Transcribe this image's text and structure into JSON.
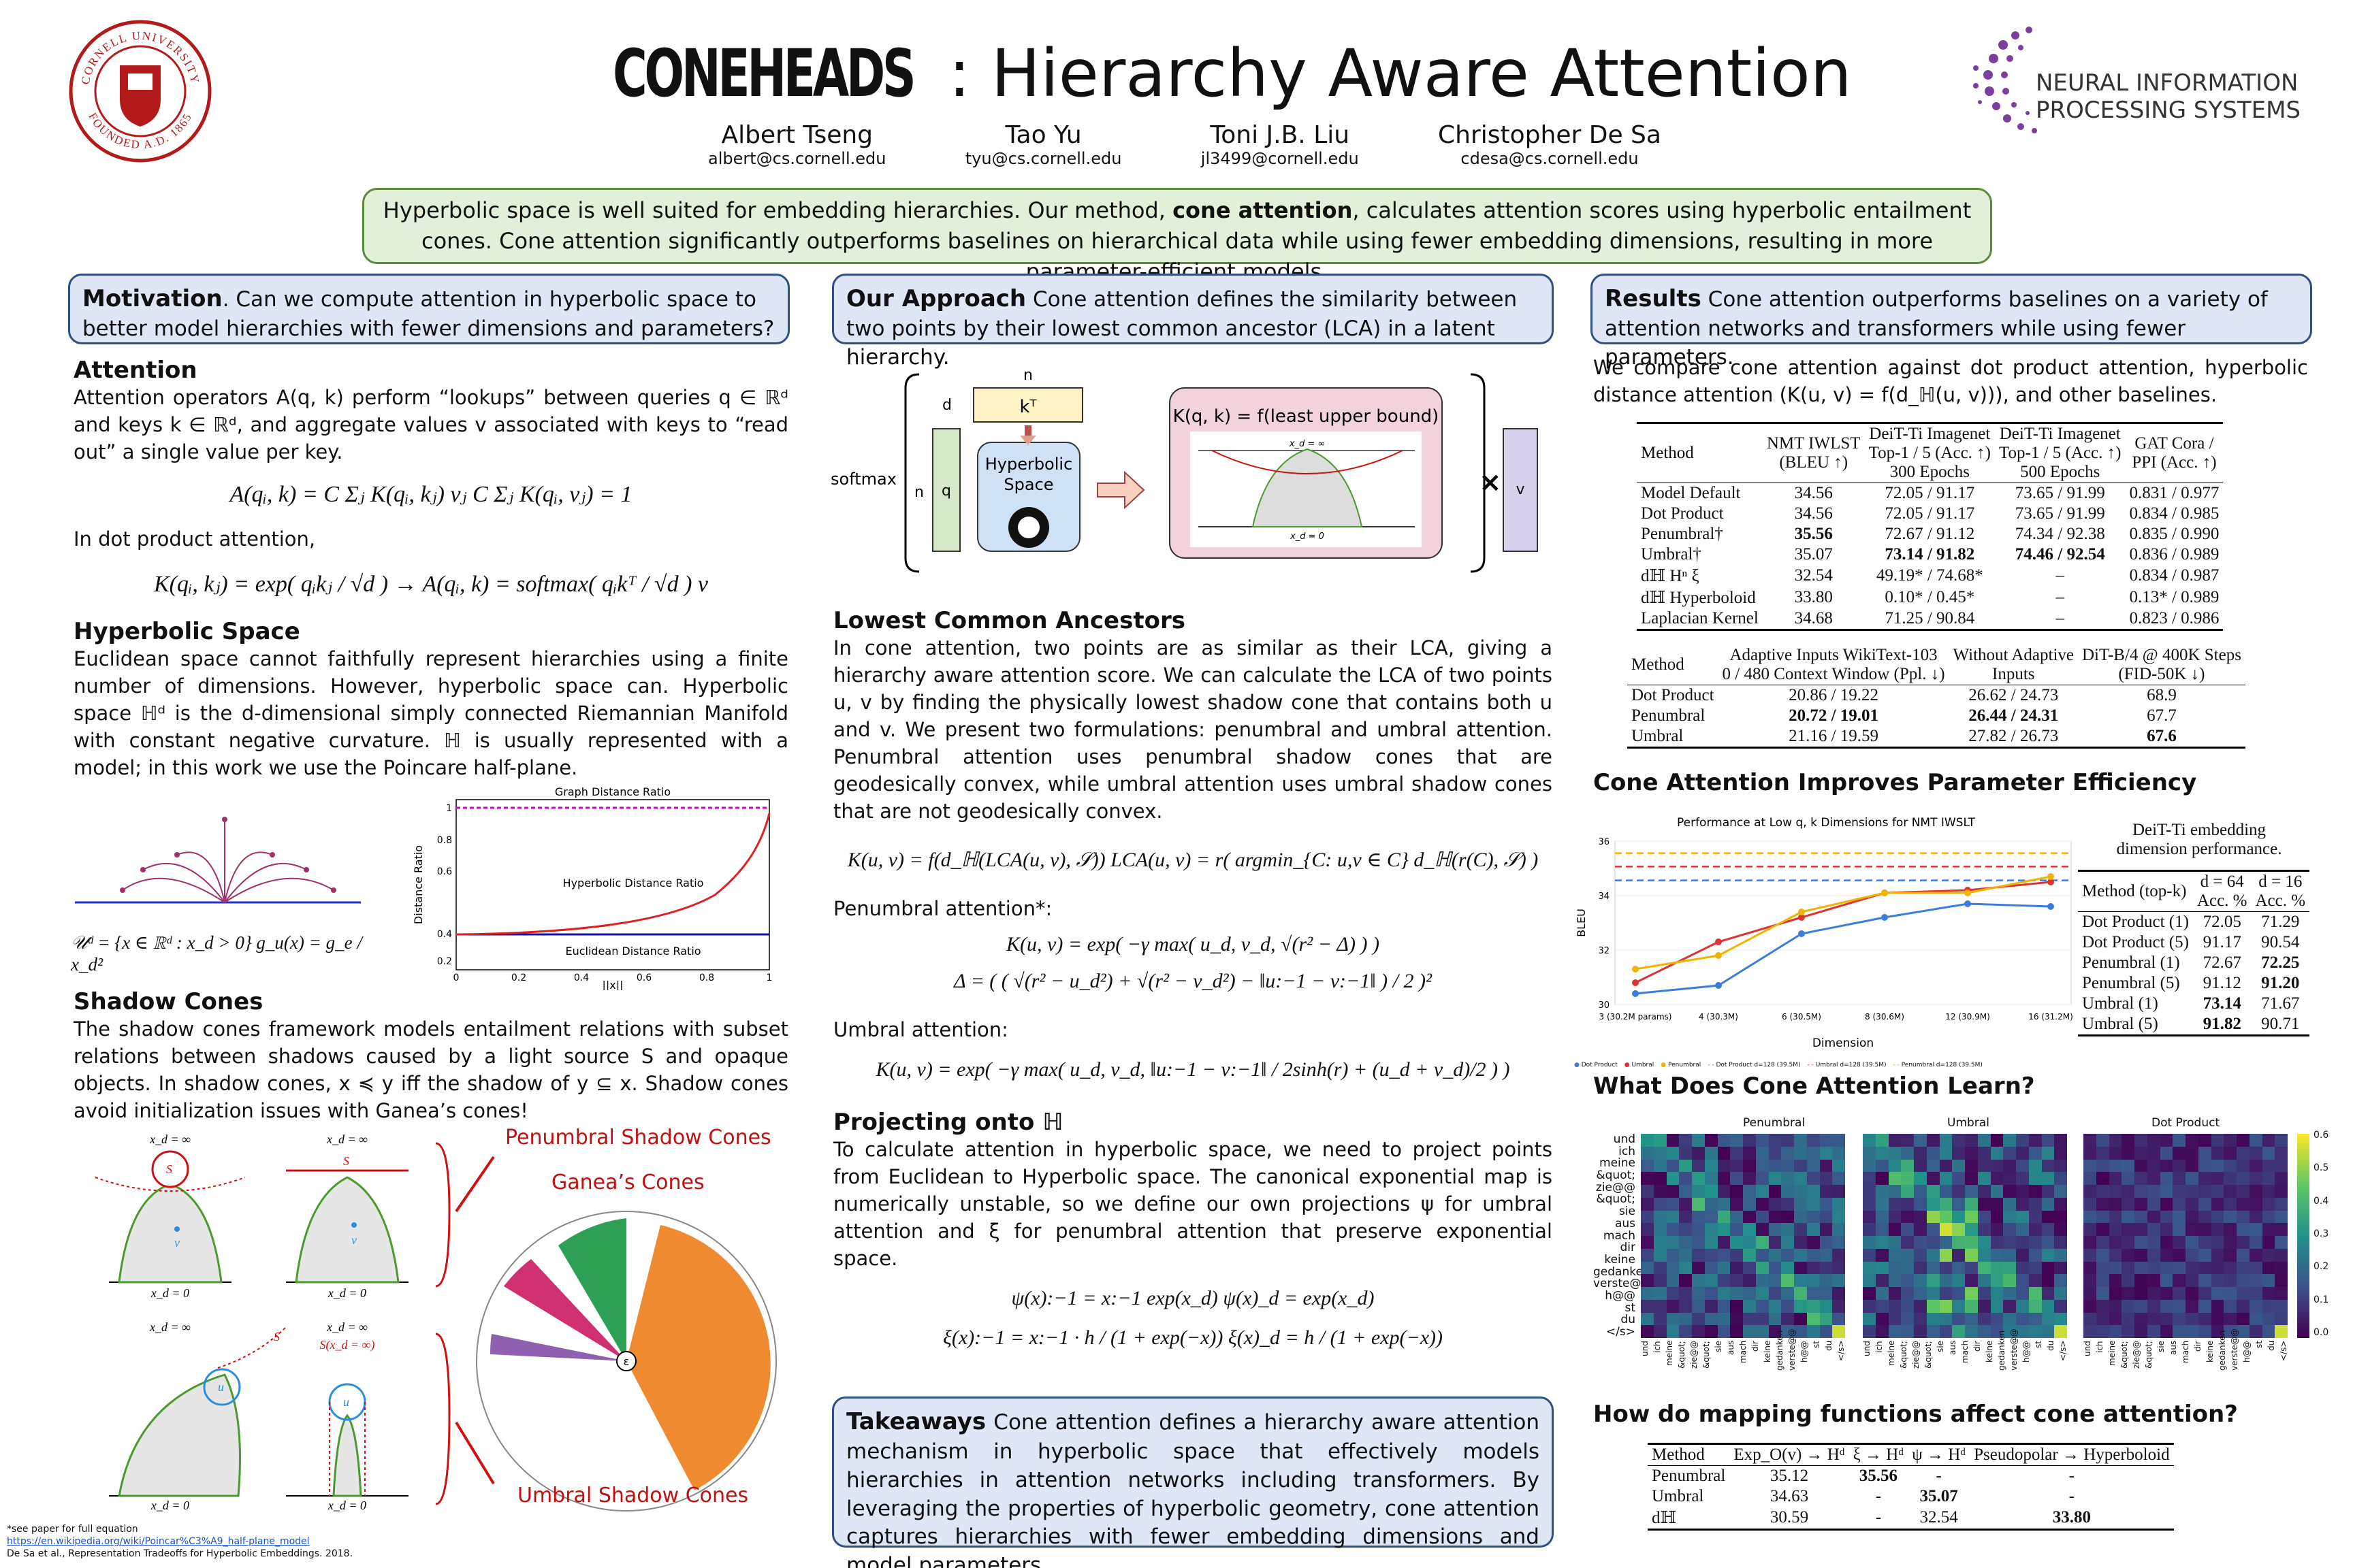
{
  "title": {
    "logo_word": "CONEHEADS",
    "rest": ": Hierarchy Aware Attention"
  },
  "authors": [
    {
      "name": "Albert Tseng",
      "email": "albert@cs.cornell.edu"
    },
    {
      "name": "Tao Yu",
      "email": "tyu@cs.cornell.edu"
    },
    {
      "name": "Toni J.B. Liu",
      "email": "jl3499@cornell.edu"
    },
    {
      "name": "Christopher De Sa",
      "email": "cdesa@cs.cornell.edu"
    }
  ],
  "cornell_seal": {
    "ring_top": "CORNELL UNIVERSITY",
    "ring_bottom": "FOUNDED A.D. 1865"
  },
  "neurips_logo": {
    "line1": "NEURAL INFORMATION",
    "line2": "PROCESSING SYSTEMS"
  },
  "abstract": {
    "a": "Hyperbolic space is well suited for embedding hierarchies. Our method, ",
    "b": "cone attention",
    "c": ", calculates attention scores using hyperbolic entailment cones. Cone attention significantly outperforms baselines on hierarchical data while using fewer embedding dimensions, resulting in more parameter-efficient models."
  },
  "col1": {
    "motivation_head": "Motivation",
    "motivation_text": ". Can we compute attention in hyperbolic space to better model hierarchies with fewer dimensions and parameters?",
    "attention_head": "Attention",
    "attention_text": "Attention operators A(q, k) perform “lookups” between queries q ∈ ℝᵈ and keys k ∈ ℝᵈ, and aggregate values v associated with keys to “read out” a single value per key.",
    "eq1": "A(qᵢ, k) = C Σⱼ K(qᵢ, kⱼ) vⱼ        C Σⱼ K(qᵢ, vⱼ) = 1",
    "dot_text": "In dot product attention,",
    "eq2": "K(qᵢ, kⱼ) = exp( qᵢkⱼ / √d ) → A(qᵢ, k) = softmax( qᵢkᵀ / √d ) v",
    "hyper_head": "Hyperbolic Space",
    "hyper_text": "Euclidean space cannot faithfully represent hierarchies using a finite number of dimensions. However, hyperbolic space can. Hyperbolic space ℍᵈ is the d-dimensional simply connected Riemannian Manifold with constant negative curvature. ℍ is usually represented with a model; in this work we use the Poincare half-plane.",
    "eq3": "𝒰ᵈ = {x ∈ ℝᵈ : x_d > 0}     g_u(x) = g_e / x_d²",
    "plot": {
      "graph": "Graph Distance Ratio",
      "hyper": "Hyperbolic Distance Ratio",
      "eucl": "Euclidean Distance Ratio",
      "ylabel": "Distance Ratio",
      "xlabel": "||x||",
      "xt": [
        "0",
        "0.2",
        "0.4",
        "0.6",
        "0.8",
        "1"
      ],
      "yt": [
        "1",
        "0.8",
        "0.6",
        "0.4",
        "0.2"
      ]
    },
    "shadow_head": "Shadow Cones",
    "shadow_text": "The shadow cones framework models entailment relations with subset relations between shadows caused by a light source S and opaque objects. In shadow cones, x ≼ y iff the shadow of y ⊆ x. Shadow cones avoid initialization issues with Ganea’s cones!",
    "pen_label": "Penumbral Shadow Cones",
    "ganea_label": "Ganea’s Cones",
    "umb_label": "Umbral Shadow Cones",
    "xinf": "x_d = ∞",
    "xzero": "x_d = 0",
    "s": "S",
    "u": "u",
    "v": "v",
    "sx": "S(x_d = ∞)",
    "eps": "ε",
    "foot1": "*see paper for full equation",
    "foot2": "https://en.wikipedia.org/wiki/Poincar%C3%A9_half-plane_model",
    "foot3": "De Sa et al., Representation Tradeoffs for Hyperbolic Embeddings. 2018."
  },
  "col2": {
    "approach_head": "Our Approach",
    "approach_text": " Cone attention defines the similarity between two points by their lowest common ancestor (LCA) in a latent hierarchy.",
    "diag": {
      "n": "n",
      "d": "d",
      "kt": "kᵀ",
      "hyp1": "Hyperbolic",
      "hyp2": "Space",
      "softmax": "softmax",
      "q": "q",
      "kq": "K(q, k) = f(least upper bound)",
      "times": "×",
      "v": "v",
      "inf": "x_d = ∞",
      "zero": "x_d = 0"
    },
    "lca_head": "Lowest Common Ancestors",
    "lca_text": "In cone attention, two points are as similar as their LCA, giving a hierarchy aware attention score. We can calculate the LCA of two points u, v by finding the physically lowest shadow cone that contains both u and v. We present two formulations: penumbral and umbral attention. Penumbral attention uses penumbral shadow cones that are geodesically convex, while umbral attention uses umbral shadow cones that are not geodesically convex.",
    "eq4": "K(u, v) = f(d_ℍ(LCA(u, v), 𝒮))     LCA(u, v) = r( argmin_{C: u,v ∈ C} d_ℍ(r(C), 𝒮) )",
    "pen_att": "Penumbral attention*:",
    "eq5": "K(u, v) = exp( −γ max( u_d, v_d, √(r² − Δ) ) )",
    "eq6": "Δ = ( ( √(r² − u_d²) + √(r² − v_d²) − ‖u:−1 − v:−1‖ ) / 2 )²",
    "umb_att": "Umbral attention:",
    "eq7": "K(u, v) = exp( −γ max( u_d, v_d, ‖u:−1 − v:−1‖ / 2sinh(r) + (u_d + v_d)/2 ) )",
    "proj_head": "Projecting onto ℍ",
    "proj_text": "To calculate attention in hyperbolic space, we need to project points from Euclidean to Hyperbolic space. The canonical exponential map is numerically unstable, so we define our own projections ψ for umbral attention and ξ for penumbral attention that preserve exponential space.",
    "eq8": "ψ(x):−1 = x:−1 exp(x_d)        ψ(x)_d = exp(x_d)",
    "eq9": "ξ(x):−1 = x:−1 · h / (1 + exp(−x))        ξ(x)_d = h / (1 + exp(−x))",
    "take_head": "Takeaways",
    "take_text": " Cone attention defines a hierarchy aware attention mechanism in hyperbolic space that effectively models hierarchies in attention networks including transformers. By leveraging the properties of hyperbolic geometry, cone attention captures hierarchies with fewer embedding dimensions and model parameters."
  },
  "col3": {
    "results_head": "Results",
    "results_text": " Cone attention outperforms baselines on a variety of attention networks and transformers while using fewer parameters.",
    "compare_text": "We compare cone attention against dot product attention, hyperbolic distance attention (K(u, v) = f(d_ℍ(u, v))), and other baselines.",
    "t1_head": [
      "Method",
      "NMT IWLST\n(BLEU ↑)",
      "DeiT-Ti Imagenet\nTop-1 / 5 (Acc. ↑)\n300 Epochs",
      "DeiT-Ti Imagenet\nTop-1 / 5 (Acc. ↑)\n500 Epochs",
      "GAT Cora /\nPPI (Acc. ↑)"
    ],
    "t1_rows": [
      [
        "Model Default",
        "34.56",
        "72.05 / 91.17",
        "73.65 / 91.99",
        "0.831 / 0.977"
      ],
      [
        "Dot Product",
        "34.56",
        "72.05 / 91.17",
        "73.65 / 91.99",
        "0.834 / 0.985"
      ],
      [
        "Penumbral†",
        "35.56",
        "72.67 / 91.12",
        "74.34 / 92.38",
        "0.835 / 0.990"
      ],
      [
        "Umbral†",
        "35.07",
        "73.14 / 91.82",
        "74.46 / 92.54",
        "0.836 / 0.989"
      ],
      [
        "dℍ Hⁿ ξ",
        "32.54",
        "49.19* / 74.68*",
        "–",
        "0.834 / 0.987"
      ],
      [
        "dℍ Hyperboloid",
        "33.80",
        "0.10* / 0.45*",
        "–",
        "0.13* / 0.989"
      ],
      [
        "Laplacian Kernel",
        "34.68",
        "71.25 / 90.84",
        "–",
        "0.823 / 0.986"
      ]
    ],
    "t2_head": [
      "Method",
      "Adaptive Inputs WikiText-103\n0 / 480 Context Window (Ppl. ↓)",
      "Without Adaptive\nInputs",
      "DiT-B/4 @ 400K Steps\n(FID-50K ↓)"
    ],
    "t2_rows": [
      [
        "Dot Product",
        "20.86 / 19.22",
        "26.62 / 24.73",
        "68.9"
      ],
      [
        "Penumbral",
        "20.72 / 19.01",
        "26.44 / 24.31",
        "67.7"
      ],
      [
        "Umbral",
        "21.16 / 19.59",
        "27.82 / 26.73",
        "67.6"
      ]
    ],
    "eff_head": "Cone Attention Improves Parameter Efficiency",
    "chart_title": "Performance at Low q, k Dimensions for NMT IWSLT",
    "t3_title": "DeiT-Ti embedding dimension performance.",
    "t3_head": [
      "Method (top-k)",
      "d = 64\nAcc. %",
      "d = 16\nAcc. %"
    ],
    "t3_rows": [
      [
        "Dot Product (1)",
        "72.05",
        "71.29"
      ],
      [
        "Dot Product (5)",
        "91.17",
        "90.54"
      ],
      [
        "Penumbral (1)",
        "72.67",
        "72.25"
      ],
      [
        "Penumbral (5)",
        "91.12",
        "91.20"
      ],
      [
        "Umbral (1)",
        "73.14",
        "71.67"
      ],
      [
        "Umbral (5)",
        "91.82",
        "90.71"
      ]
    ],
    "learn_head": "What Does Cone Attention Learn?",
    "heat_titles": [
      "Penumbral",
      "Umbral",
      "Dot Product"
    ],
    "heat_tokens": [
      "und",
      "ich",
      "meine",
      "&quot;",
      "zie@@",
      "&quot;",
      "sie",
      "aus",
      "mach",
      "dir",
      "keine",
      "gedanken",
      "verste@@",
      "h@@",
      "st",
      "du",
      "</s>"
    ],
    "cbar": [
      "0.6",
      "0.5",
      "0.4",
      "0.3",
      "0.2",
      "0.1",
      "0.0"
    ],
    "map_head": "How do mapping functions affect cone attention?",
    "t4_head": [
      "Method",
      "Exp_O(v) → Hᵈ",
      "ξ → Hᵈ",
      "ψ → Hᵈ",
      "Pseudopolar → Hyperboloid"
    ],
    "t4_rows": [
      [
        "Penumbral",
        "35.12",
        "35.56",
        "-",
        "-"
      ],
      [
        "Umbral",
        "34.63",
        "-",
        "35.07",
        "-"
      ],
      [
        "dℍ",
        "30.59",
        "-",
        "32.54",
        "33.80"
      ]
    ]
  },
  "chart_data": {
    "type": "line",
    "title": "Performance at Low q, k Dimensions for NMT IWSLT",
    "xlabel": "Dimension",
    "ylabel": "BLEU",
    "categories": [
      "3 (30.2M params)",
      "4 (30.3M)",
      "6 (30.5M)",
      "8 (30.6M)",
      "12 (30.9M)",
      "16 (31.2M)"
    ],
    "ylim": [
      30,
      36
    ],
    "series": [
      {
        "name": "Dot Product",
        "color": "#3b7ddd",
        "values": [
          30.4,
          30.7,
          32.6,
          33.2,
          33.7,
          33.6
        ]
      },
      {
        "name": "Umbral",
        "color": "#d33",
        "values": [
          30.8,
          32.3,
          33.2,
          34.1,
          34.2,
          34.5
        ]
      },
      {
        "name": "Penumbral",
        "color": "#f0b400",
        "values": [
          31.3,
          31.8,
          33.4,
          34.1,
          34.1,
          34.7
        ]
      }
    ],
    "reference_lines": [
      {
        "name": "Dot Product d=128 (39.5M)",
        "color": "#3b7ddd",
        "value": 34.56
      },
      {
        "name": "Umbral d=128 (39.5M)",
        "color": "#d33",
        "value": 35.07
      },
      {
        "name": "Penumbral d=128 (39.5M)",
        "color": "#f0b400",
        "value": 35.56
      }
    ],
    "legend_position": "bottom"
  }
}
